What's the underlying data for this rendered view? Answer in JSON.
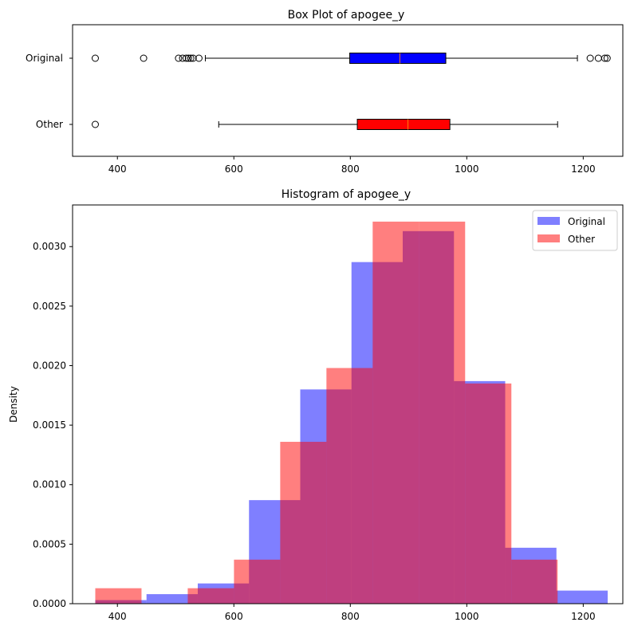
{
  "chart_data": [
    {
      "type": "box",
      "title": "Box Plot of apogee_y",
      "orientation": "horizontal",
      "xlim": [
        323,
        1268
      ],
      "xticks": [
        400,
        600,
        800,
        1000,
        1200
      ],
      "boxes": [
        {
          "name": "Original",
          "color": "#0000ff",
          "whisker_low": 551,
          "q1": 799,
          "median": 885,
          "q3": 964,
          "whisker_high": 1190,
          "outliers": [
            362,
            445,
            505,
            512,
            518,
            522,
            526,
            530,
            540,
            1212,
            1226,
            1237,
            1241
          ]
        },
        {
          "name": "Other",
          "color": "#ff0000",
          "whisker_low": 574,
          "q1": 812,
          "median": 899,
          "q3": 971,
          "whisker_high": 1156,
          "outliers": [
            362
          ]
        }
      ]
    },
    {
      "type": "histogram",
      "title": "Histogram of apogee_y",
      "xlabel": "",
      "ylabel": "Density",
      "xlim": [
        323,
        1268
      ],
      "ylim": [
        0,
        0.00335
      ],
      "xticks": [
        400,
        600,
        800,
        1000,
        1200
      ],
      "yticks": [
        "0.0000",
        "0.0005",
        "0.0010",
        "0.0015",
        "0.0020",
        "0.0025",
        "0.0030"
      ],
      "legend": "top-right",
      "series": [
        {
          "name": "Original",
          "color": "#0000ff",
          "opacity": 0.5,
          "bin_edges": [
            362,
            450,
            538,
            626,
            714,
            802,
            890,
            978,
            1066,
            1154,
            1242
          ],
          "values": [
            3e-05,
            8e-05,
            0.00017,
            0.00087,
            0.0018,
            0.00287,
            0.00313,
            0.00187,
            0.00047,
            0.00011
          ]
        },
        {
          "name": "Other",
          "color": "#ff0000",
          "opacity": 0.5,
          "bin_edges": [
            362,
            441.4,
            520.8,
            600.2,
            679.6,
            759,
            838.4,
            917.8,
            997.2,
            1076.6,
            1156
          ],
          "values": [
            0.00013,
            0.0,
            0.00013,
            0.00037,
            0.00136,
            0.00198,
            0.00321,
            0.00321,
            0.00185,
            0.00037
          ]
        }
      ]
    }
  ]
}
